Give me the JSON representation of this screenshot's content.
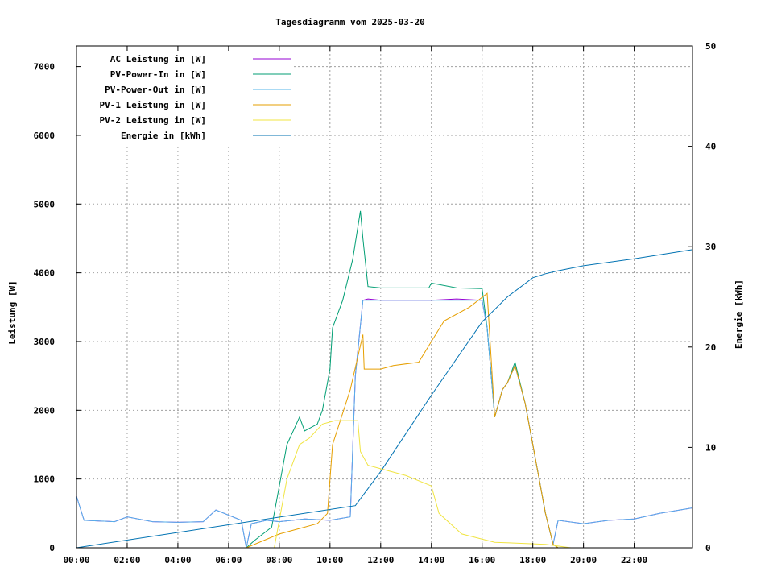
{
  "chart_data": {
    "type": "line",
    "title": "Tagesdiagramm vom 2025-03-20",
    "xlabel": "",
    "ylabel": "Leistung [W]",
    "y2label": "Energie [kWh]",
    "xlim": [
      0,
      24.3
    ],
    "ylim": [
      0,
      7300
    ],
    "y2lim": [
      0,
      50
    ],
    "grid": true,
    "legend_position": "top-left",
    "x_ticks": [
      {
        "v": 0,
        "label": "00:00"
      },
      {
        "v": 2,
        "label": "02:00"
      },
      {
        "v": 4,
        "label": "04:00"
      },
      {
        "v": 6,
        "label": "06:00"
      },
      {
        "v": 8,
        "label": "08:00"
      },
      {
        "v": 10,
        "label": "10:00"
      },
      {
        "v": 12,
        "label": "12:00"
      },
      {
        "v": 14,
        "label": "14:00"
      },
      {
        "v": 16,
        "label": "16:00"
      },
      {
        "v": 18,
        "label": "18:00"
      },
      {
        "v": 20,
        "label": "20:00"
      },
      {
        "v": 22,
        "label": "22:00"
      }
    ],
    "y_ticks": [
      0,
      1000,
      2000,
      3000,
      4000,
      5000,
      6000,
      7000
    ],
    "y2_ticks": [
      0,
      10,
      20,
      30,
      40,
      50
    ],
    "series": [
      {
        "name": "AC Leistung in [W]",
        "color": "#9400d3",
        "axis": "y",
        "x": [
          0,
          0.3,
          1.5,
          2,
          3,
          4,
          5,
          5.5,
          6.5,
          6.7,
          6.9,
          7.5,
          8,
          9,
          10,
          10.8,
          11,
          11.3,
          11.5,
          12,
          13,
          14,
          15,
          16,
          16.2,
          16.5,
          16.8,
          17,
          17.3,
          17.7,
          18,
          18.5,
          18.8,
          19,
          20,
          21,
          22,
          23,
          24.3
        ],
        "y": [
          750,
          400,
          380,
          450,
          380,
          370,
          380,
          550,
          400,
          0,
          350,
          400,
          380,
          420,
          400,
          450,
          2500,
          3600,
          3620,
          3600,
          3600,
          3600,
          3620,
          3600,
          3200,
          1900,
          2300,
          2400,
          2650,
          2100,
          1500,
          500,
          50,
          400,
          350,
          400,
          420,
          500,
          580
        ]
      },
      {
        "name": "PV-Power-In in [W]",
        "color": "#009e73",
        "axis": "y",
        "x": [
          0,
          6.7,
          7,
          7.7,
          8,
          8.3,
          8.8,
          9,
          9.5,
          9.7,
          10,
          10.1,
          10.5,
          10.9,
          11.2,
          11.3,
          11.5,
          12,
          13,
          13.9,
          14,
          15,
          16,
          16.2,
          16.5,
          16.8,
          17,
          17.3,
          17.7,
          18,
          18.5,
          18.8,
          19,
          24.3
        ],
        "y": [
          0,
          0,
          100,
          300,
          900,
          1500,
          1900,
          1700,
          1800,
          2000,
          2600,
          3200,
          3600,
          4200,
          4900,
          4500,
          3800,
          3780,
          3780,
          3780,
          3850,
          3780,
          3770,
          3200,
          1900,
          2300,
          2400,
          2700,
          2100,
          1500,
          500,
          50,
          0,
          0
        ]
      },
      {
        "name": "PV-Power-Out in [W]",
        "color": "#56b4e9",
        "axis": "y",
        "x": [
          0,
          0.3,
          1.5,
          2,
          3,
          4,
          5,
          5.5,
          6.5,
          6.7,
          6.9,
          7.5,
          8,
          9,
          10,
          10.8,
          11,
          11.3,
          11.5,
          12,
          13,
          14,
          15,
          16,
          16.2,
          16.5,
          16.8,
          17,
          17.3,
          17.7,
          18,
          18.5,
          18.8,
          19,
          20,
          21,
          22,
          23,
          24.3
        ],
        "y": [
          750,
          400,
          380,
          450,
          380,
          370,
          380,
          550,
          400,
          0,
          350,
          400,
          380,
          420,
          400,
          450,
          2500,
          3600,
          3600,
          3600,
          3600,
          3600,
          3600,
          3600,
          3200,
          1900,
          2300,
          2400,
          2650,
          2100,
          1500,
          500,
          50,
          400,
          350,
          400,
          420,
          500,
          580
        ]
      },
      {
        "name": "PV-1 Leistung in [W]",
        "color": "#e69f00",
        "axis": "y",
        "x": [
          0,
          6.7,
          8,
          9,
          9.5,
          9.9,
          10.1,
          10.8,
          11.3,
          11.35,
          12,
          12.5,
          13.5,
          14,
          14.5,
          15.5,
          16.2,
          16.5,
          16.8,
          17,
          17.3,
          17.7,
          18,
          18.5,
          18.8,
          19,
          24.3
        ],
        "y": [
          0,
          0,
          200,
          300,
          350,
          500,
          1500,
          2300,
          3100,
          2600,
          2600,
          2650,
          2700,
          3000,
          3300,
          3500,
          3700,
          1900,
          2300,
          2400,
          2650,
          2100,
          1500,
          500,
          50,
          0,
          0
        ]
      },
      {
        "name": "PV-2 Leistung in [W]",
        "color": "#f0e442",
        "axis": "y",
        "x": [
          0,
          7.8,
          8.3,
          8.8,
          9.2,
          9.7,
          10.2,
          11.1,
          11.2,
          11.5,
          12,
          13,
          14,
          14.3,
          15.2,
          16.5,
          18.5,
          19.5,
          24.3
        ],
        "y": [
          0,
          0,
          1000,
          1500,
          1600,
          1800,
          1850,
          1850,
          1400,
          1200,
          1150,
          1050,
          900,
          500,
          200,
          80,
          50,
          0,
          0
        ]
      },
      {
        "name": "Energie in [kWh]",
        "color": "#0072b2",
        "axis": "y2",
        "x": [
          0,
          11,
          12,
          14,
          16,
          17,
          18,
          18.5,
          19,
          20,
          22,
          24.3
        ],
        "y": [
          0,
          4.2,
          7.6,
          15.2,
          22.5,
          25.0,
          26.9,
          27.3,
          27.6,
          28.1,
          28.8,
          29.7
        ]
      }
    ]
  }
}
